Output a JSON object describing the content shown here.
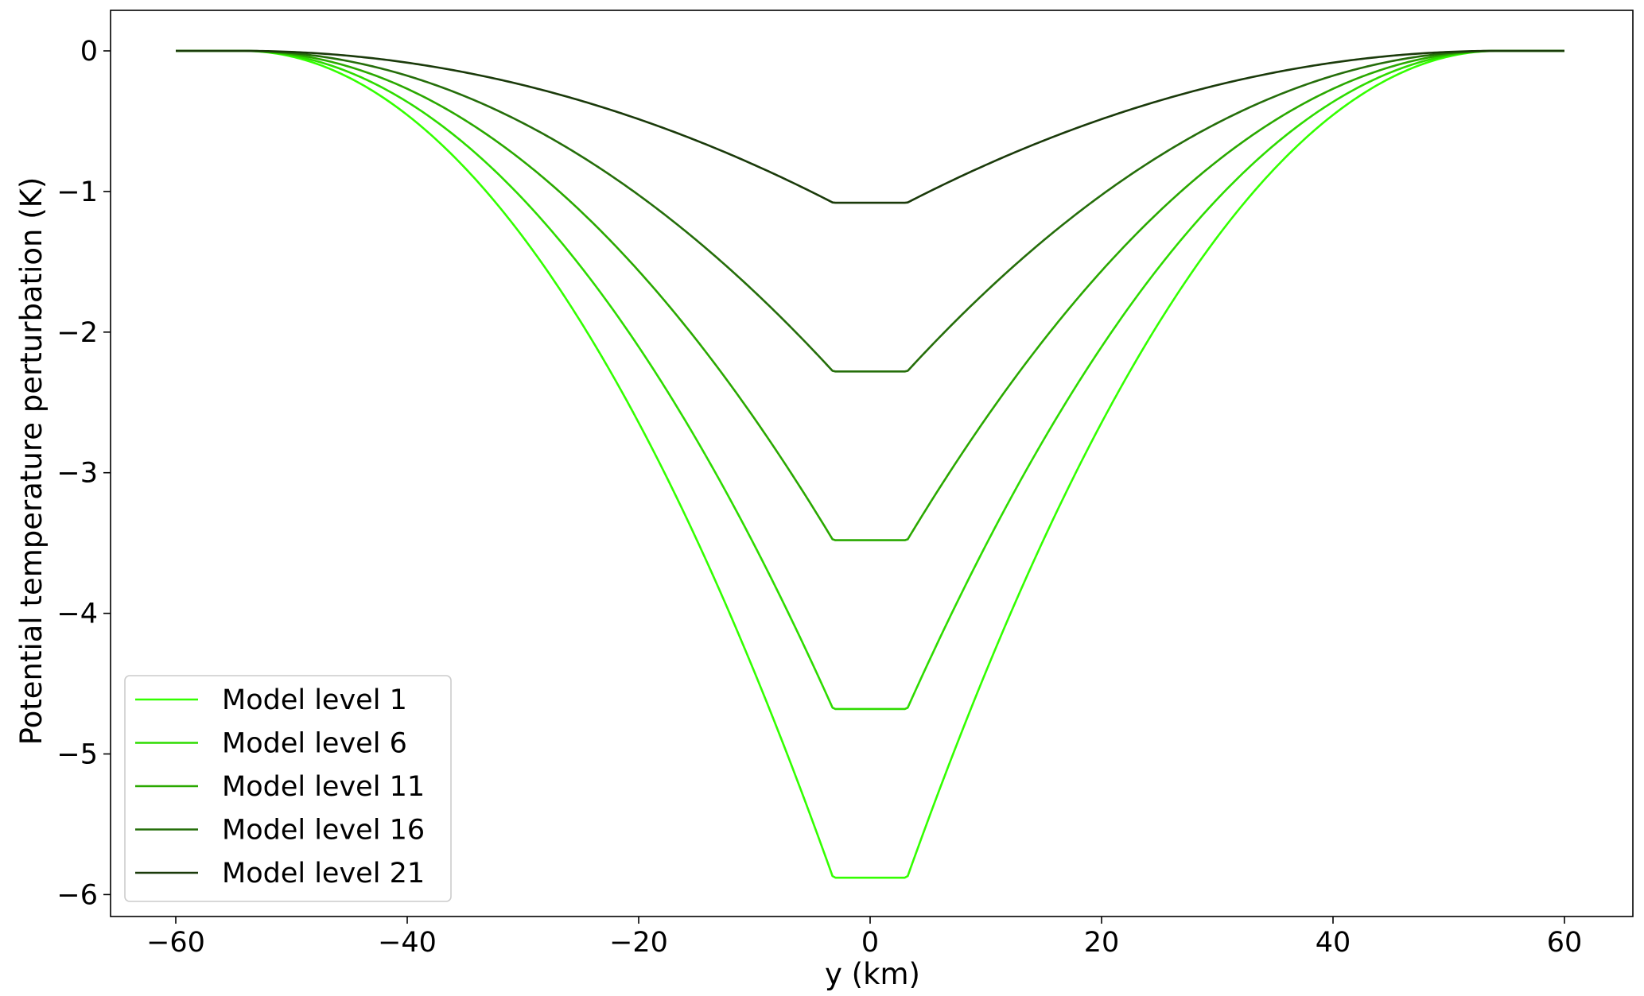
{
  "chart_data": {
    "type": "line",
    "title": "",
    "xlabel": "y (km)",
    "ylabel": "Potential temperature perturbation (K)",
    "xlim": [
      -66,
      66
    ],
    "ylim": [
      -6.2,
      0.3
    ],
    "xticks": [
      -60,
      -40,
      -20,
      0,
      20,
      40,
      60
    ],
    "xtick_labels": [
      "−60",
      "−40",
      "−20",
      "0",
      "20",
      "40",
      "60"
    ],
    "yticks": [
      0,
      -1,
      -2,
      -3,
      -4,
      -5,
      -6
    ],
    "ytick_labels": [
      "0",
      "−1",
      "−2",
      "−3",
      "−4",
      "−5",
      "−6"
    ],
    "grid": false,
    "legend_position": "lower-left",
    "profile": {
      "outer_edge_km": 60,
      "zero_edge_km": 54.2,
      "flat_half_width_km": 3.2
    },
    "series": [
      {
        "name": "Model level 1",
        "min": -5.88,
        "color": "#33ff00"
      },
      {
        "name": "Model level 6",
        "min": -4.68,
        "color": "#2edb00"
      },
      {
        "name": "Model level 11",
        "min": -3.48,
        "color": "#2aa800"
      },
      {
        "name": "Model level 16",
        "min": -2.28,
        "color": "#256e0a"
      },
      {
        "name": "Model level 21",
        "min": -1.08,
        "color": "#1a3a0a"
      }
    ]
  }
}
